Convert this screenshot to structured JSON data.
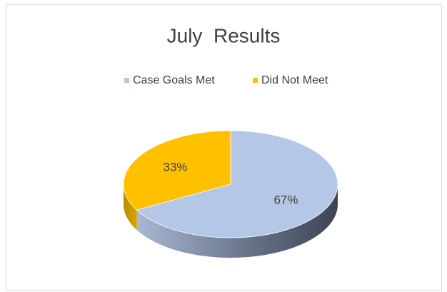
{
  "chart_data": {
    "type": "pie",
    "title": "July  Results",
    "categories": [
      "Case Goals Met",
      "Did Not Meet"
    ],
    "values": [
      67,
      33
    ],
    "value_labels": [
      "67%",
      "33%"
    ],
    "colors": [
      "#b4c7e7",
      "#ffc000"
    ]
  }
}
